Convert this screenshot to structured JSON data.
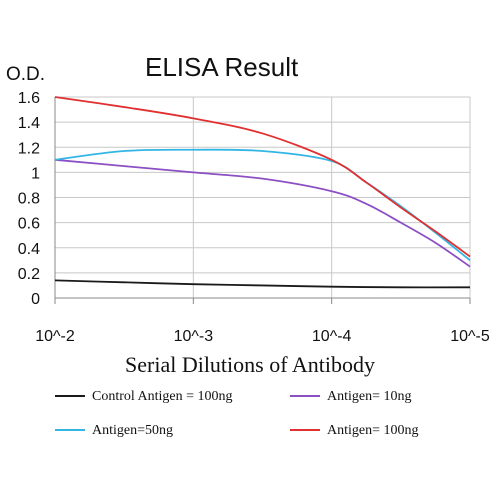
{
  "chart_data": {
    "type": "line",
    "title": "ELISA Result",
    "ylabel": "O.D.",
    "xlabel": "Serial Dilutions of Antibody",
    "x_categories": [
      "10^-2",
      "10^-3",
      "10^-4",
      "10^-5"
    ],
    "yticks": [
      "0",
      "0.2",
      "0.4",
      "0.6",
      "0.8",
      "1",
      "1.2",
      "1.4",
      "1.6"
    ],
    "ylim": [
      0,
      1.6
    ],
    "grid": true,
    "legend_position": "bottom",
    "series": [
      {
        "name": "Control Antigen = 100ng",
        "color": "#1a1a1a",
        "x": [
          0,
          0.5,
          1,
          1.5,
          2,
          2.5,
          3
        ],
        "values": [
          0.14,
          0.125,
          0.11,
          0.1,
          0.09,
          0.085,
          0.085
        ]
      },
      {
        "name": "Antigen= 10ng",
        "color": "#8c4fc4",
        "x": [
          0,
          0.5,
          1,
          1.5,
          2,
          2.25,
          2.5,
          2.75,
          3
        ],
        "values": [
          1.1,
          1.05,
          1.0,
          0.95,
          0.85,
          0.75,
          0.6,
          0.44,
          0.25
        ]
      },
      {
        "name": "Antigen=50ng",
        "color": "#33b5e5",
        "x": [
          0,
          0.5,
          1,
          1.5,
          2,
          2.25,
          2.5,
          2.75,
          3
        ],
        "values": [
          1.1,
          1.17,
          1.18,
          1.17,
          1.09,
          0.92,
          0.73,
          0.52,
          0.3
        ]
      },
      {
        "name": "Antigen= 100ng",
        "color": "#e03030",
        "x": [
          0,
          0.5,
          1,
          1.5,
          2,
          2.25,
          2.5,
          2.75,
          3
        ],
        "values": [
          1.6,
          1.52,
          1.43,
          1.31,
          1.1,
          0.92,
          0.72,
          0.53,
          0.33
        ]
      }
    ]
  }
}
